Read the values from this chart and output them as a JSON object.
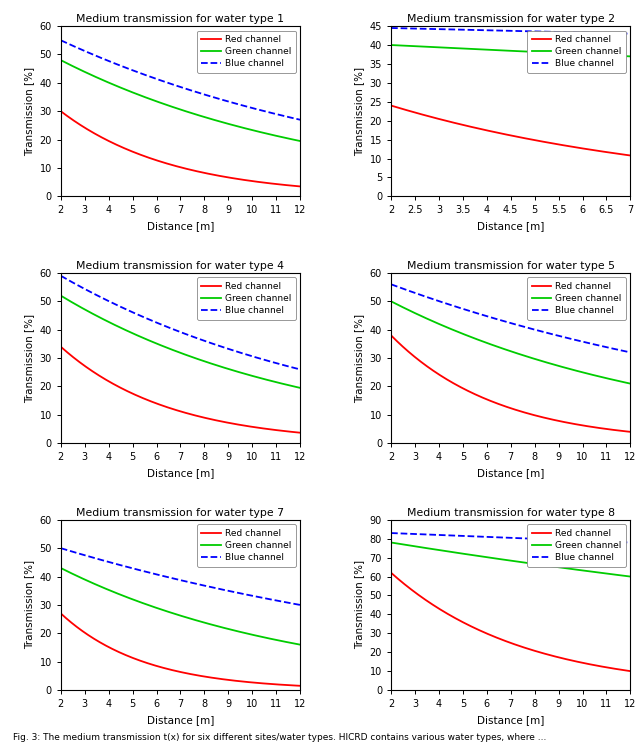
{
  "subplots": [
    {
      "title": "Medium transmission for water type 1",
      "xlim": [
        2,
        12
      ],
      "ylim": [
        0,
        60
      ],
      "xticks": [
        2,
        3,
        4,
        5,
        6,
        7,
        8,
        9,
        10,
        11,
        12
      ],
      "yticks": [
        0,
        10,
        20,
        30,
        40,
        50,
        60
      ],
      "red": [
        30.0,
        3.5,
        2,
        12
      ],
      "green": [
        48.0,
        19.5,
        2,
        12
      ],
      "blue": [
        55.0,
        27.0,
        2,
        12
      ]
    },
    {
      "title": "Medium transmission for water type 2",
      "xlim": [
        2,
        7
      ],
      "ylim": [
        0,
        45
      ],
      "xticks": [
        2,
        2.5,
        3,
        3.5,
        4,
        4.5,
        5,
        5.5,
        6,
        6.5,
        7
      ],
      "yticks": [
        0,
        5,
        10,
        15,
        20,
        25,
        30,
        35,
        40,
        45
      ],
      "red": [
        24.0,
        10.8,
        2,
        7
      ],
      "green": [
        40.0,
        37.0,
        2,
        7
      ],
      "blue": [
        44.5,
        43.0,
        2,
        7
      ]
    },
    {
      "title": "Medium transmission for water type 4",
      "xlim": [
        2,
        12
      ],
      "ylim": [
        0,
        60
      ],
      "xticks": [
        2,
        3,
        4,
        5,
        6,
        7,
        8,
        9,
        10,
        11,
        12
      ],
      "yticks": [
        0,
        10,
        20,
        30,
        40,
        50,
        60
      ],
      "red": [
        34.0,
        3.7,
        2,
        12
      ],
      "green": [
        52.0,
        19.5,
        2,
        12
      ],
      "blue": [
        59.0,
        26.0,
        2,
        12
      ]
    },
    {
      "title": "Medium transmission for water type 5",
      "xlim": [
        2,
        12
      ],
      "ylim": [
        0,
        60
      ],
      "xticks": [
        2,
        3,
        4,
        5,
        6,
        7,
        8,
        9,
        10,
        11,
        12
      ],
      "yticks": [
        0,
        10,
        20,
        30,
        40,
        50,
        60
      ],
      "red": [
        38.0,
        4.0,
        2,
        12
      ],
      "green": [
        50.0,
        21.0,
        2,
        12
      ],
      "blue": [
        56.0,
        32.0,
        2,
        12
      ]
    },
    {
      "title": "Medium transmission for water type 7",
      "xlim": [
        2,
        12
      ],
      "ylim": [
        0,
        60
      ],
      "xticks": [
        2,
        3,
        4,
        5,
        6,
        7,
        8,
        9,
        10,
        11,
        12
      ],
      "yticks": [
        0,
        10,
        20,
        30,
        40,
        50,
        60
      ],
      "red": [
        27.0,
        1.5,
        2,
        12
      ],
      "green": [
        43.0,
        16.0,
        2,
        12
      ],
      "blue": [
        50.0,
        30.0,
        2,
        12
      ]
    },
    {
      "title": "Medium transmission for water type 8",
      "xlim": [
        2,
        12
      ],
      "ylim": [
        0,
        90
      ],
      "xticks": [
        2,
        3,
        4,
        5,
        6,
        7,
        8,
        9,
        10,
        11,
        12
      ],
      "yticks": [
        0,
        10,
        20,
        30,
        40,
        50,
        60,
        70,
        80,
        90
      ],
      "red": [
        62.0,
        10.0,
        2,
        12
      ],
      "green": [
        78.0,
        60.0,
        2,
        12
      ],
      "blue": [
        83.0,
        78.0,
        2,
        12
      ]
    }
  ],
  "red_color": "#FF0000",
  "green_color": "#00CC00",
  "blue_color": "#0000FF",
  "xlabel": "Distance [m]",
  "ylabel": "Transmission [%]",
  "caption": "Fig. 3: The medium transmission t(x) for six different sites/water types. HICRD contains various water types, where ...",
  "background_color": "#FFFFFF"
}
